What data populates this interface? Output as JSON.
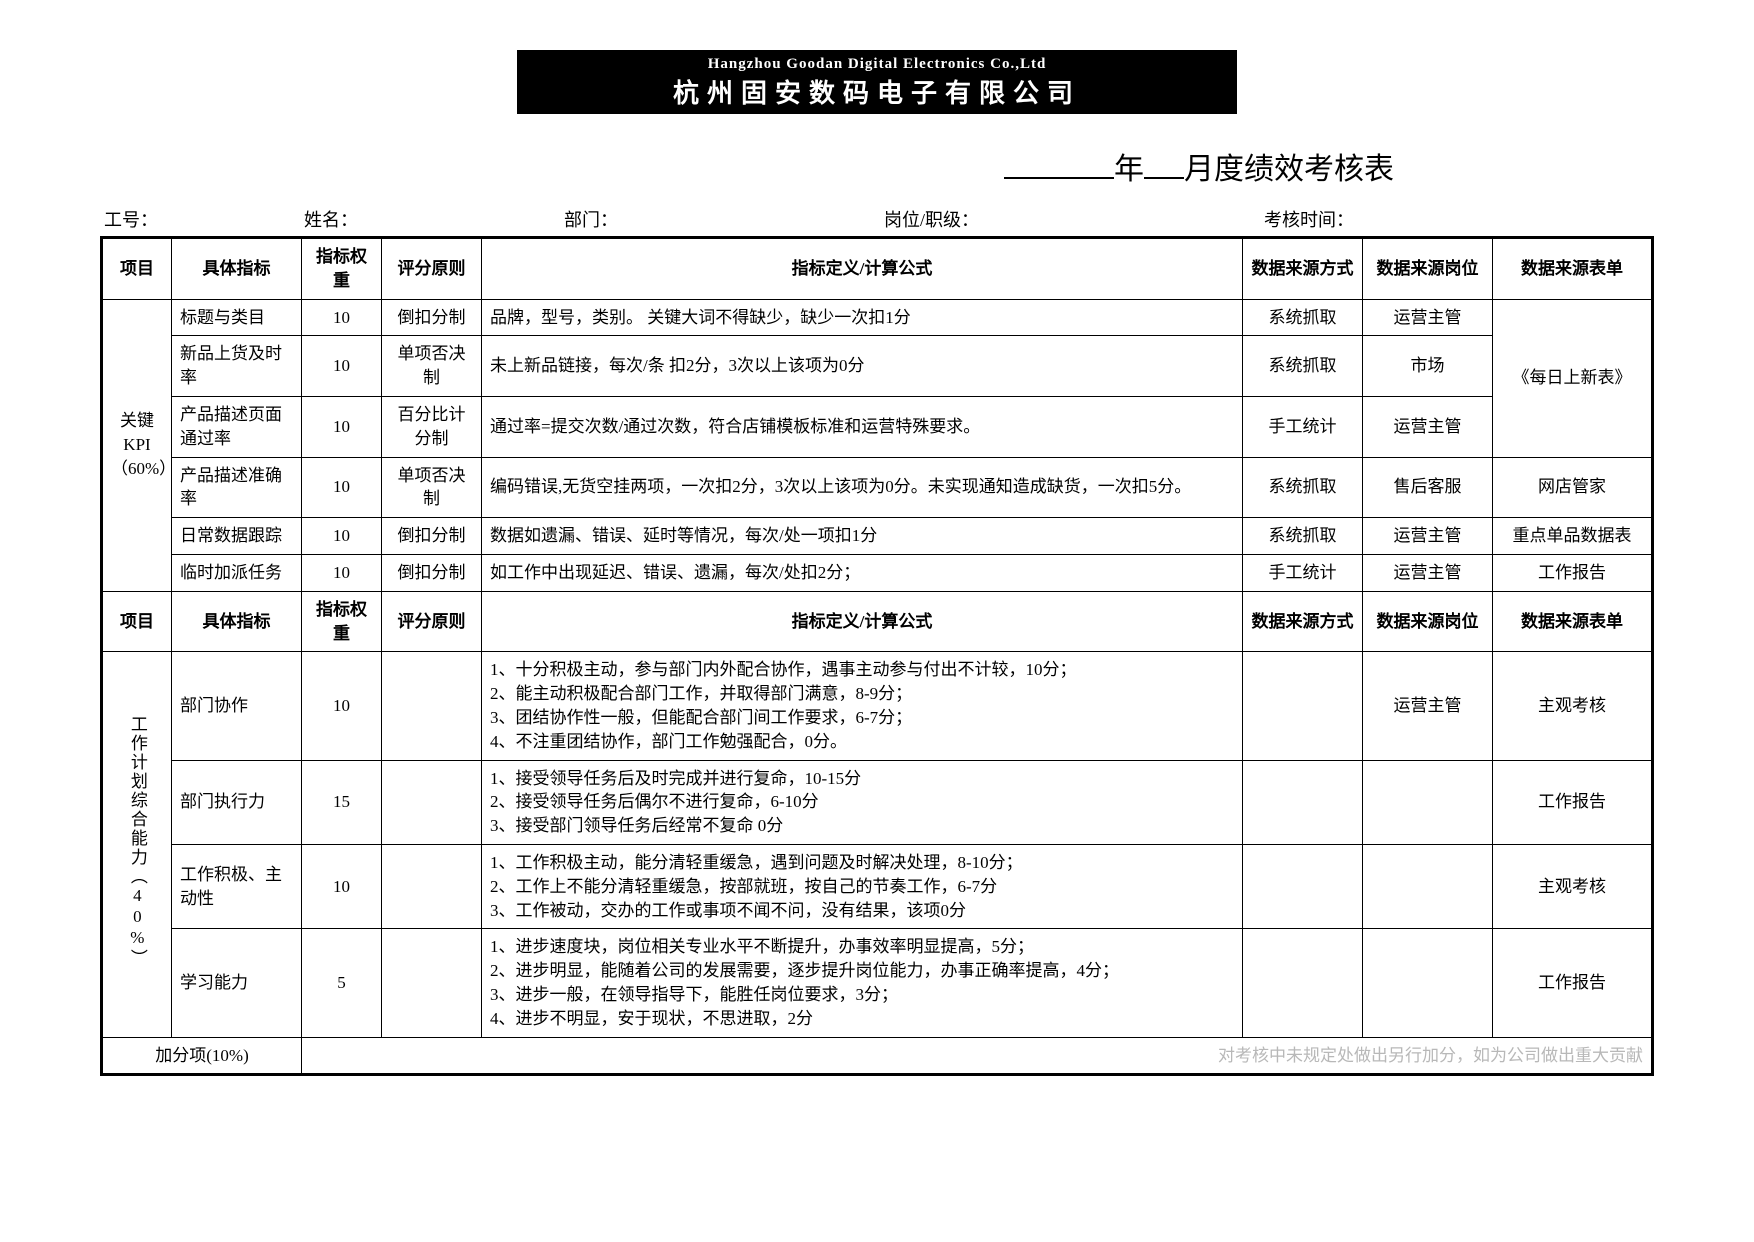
{
  "banner": {
    "en": "Hangzhou Goodan Digital Electronics Co.,Ltd",
    "cn": "杭州固安数码电子有限公司"
  },
  "title": {
    "year_suffix": "年",
    "month_suffix": "月度绩效考核表"
  },
  "meta": {
    "emp_no": "工号：",
    "name": "姓名：",
    "dept": "部门：",
    "position": "岗位/职级：",
    "eval_time": "考核时间："
  },
  "headers": {
    "project": "项目",
    "indicator": "具体指标",
    "weight": "指标权重",
    "principle": "评分原则",
    "definition": "指标定义/计算公式",
    "src_method": "数据来源方式",
    "src_post": "数据来源岗位",
    "src_form": "数据来源表单"
  },
  "section1": {
    "name": "关键KPI（60%）",
    "rows": [
      {
        "indicator": "标题与类目",
        "weight": "10",
        "principle": "倒扣分制",
        "definition": "品牌，型号，类别。 关键大词不得缺少，缺少一次扣1分",
        "src_method": "系统抓取",
        "src_post": "运营主管",
        "src_form": ""
      },
      {
        "indicator": "新品上货及时率",
        "weight": "10",
        "principle": "单项否决制",
        "definition": "未上新品链接，每次/条 扣2分，3次以上该项为0分",
        "src_method": "系统抓取",
        "src_post": "市场",
        "src_form": "《每日上新表》"
      },
      {
        "indicator": "产品描述页面通过率",
        "weight": "10",
        "principle": "百分比计分制",
        "definition": "通过率=提交次数/通过次数，符合店铺模板标准和运营特殊要求。",
        "src_method": "手工统计",
        "src_post": "运营主管",
        "src_form": ""
      },
      {
        "indicator": "产品描述准确率",
        "weight": "10",
        "principle": "单项否决制",
        "definition": "编码错误,无货空挂两项，一次扣2分，3次以上该项为0分。未实现通知造成缺货，一次扣5分。",
        "src_method": "系统抓取",
        "src_post": "售后客服",
        "src_form": "网店管家"
      },
      {
        "indicator": "日常数据跟踪",
        "weight": "10",
        "principle": "倒扣分制",
        "definition": "数据如遗漏、错误、延时等情况，每次/处一项扣1分",
        "src_method": "系统抓取",
        "src_post": "运营主管",
        "src_form": "重点单品数据表"
      },
      {
        "indicator": "临时加派任务",
        "weight": "10",
        "principle": "倒扣分制",
        "definition": "如工作中出现延迟、错误、遗漏，每次/处扣2分；",
        "src_method": "手工统计",
        "src_post": "运营主管",
        "src_form": "工作报告"
      }
    ],
    "merged_form_123": "《每日上新表》"
  },
  "section2": {
    "name": "工作计划综合能力（40%）",
    "rows": [
      {
        "indicator": "部门协作",
        "weight": "10",
        "principle": "",
        "definition": "1、十分积极主动，参与部门内外配合协作，遇事主动参与付出不计较，10分；\n2、能主动积极配合部门工作，并取得部门满意，8-9分；\n3、团结协作性一般，但能配合部门间工作要求，6-7分；\n4、不注重团结协作，部门工作勉强配合，0分。",
        "src_method": "",
        "src_post": "运营主管",
        "src_form": "主观考核"
      },
      {
        "indicator": "部门执行力",
        "weight": "15",
        "principle": "",
        "definition": "1、接受领导任务后及时完成并进行复命，10-15分\n2、接受领导任务后偶尔不进行复命，6-10分\n3、接受部门领导任务后经常不复命   0分",
        "src_method": "",
        "src_post": "",
        "src_form": "工作报告"
      },
      {
        "indicator": "工作积极、主动性",
        "weight": "10",
        "principle": "",
        "definition": "1、工作积极主动，能分清轻重缓急，遇到问题及时解决处理，8-10分；\n2、工作上不能分清轻重缓急，按部就班，按自己的节奏工作，6-7分\n3、工作被动，交办的工作或事项不闻不问，没有结果，该项0分",
        "src_method": "",
        "src_post": "",
        "src_form": "主观考核"
      },
      {
        "indicator": "学习能力",
        "weight": "5",
        "principle": "",
        "definition": "1、进步速度块，岗位相关专业水平不断提升，办事效率明显提高，5分；\n2、进步明显，能随着公司的发展需要，逐步提升岗位能力，办事正确率提高，4分；\n3、进步一般，在领导指导下，能胜任岗位要求，3分；\n4、进步不明显，安于现状，不思进取，2分",
        "src_method": "",
        "src_post": "",
        "src_form": "工作报告"
      }
    ]
  },
  "bonus": {
    "label": "加分项(10%)",
    "note": "对考核中未规定处做出另行加分，如为公司做出重大贡献"
  }
}
